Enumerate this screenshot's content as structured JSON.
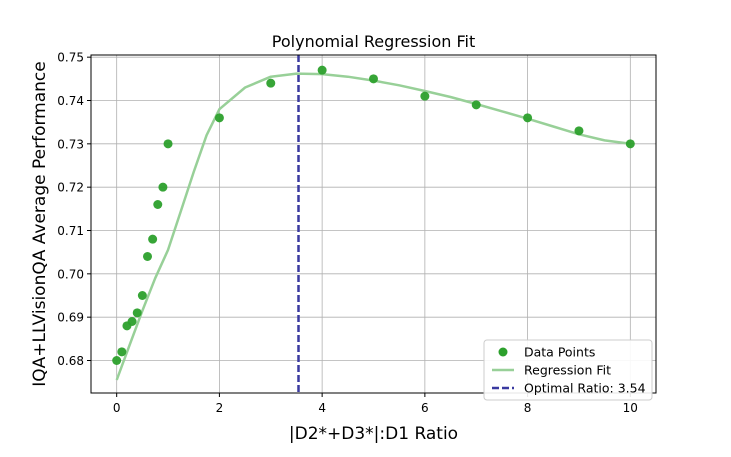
{
  "chart_data": {
    "type": "scatter",
    "title": "Polynomial Regression Fit",
    "xlabel": "|D2*+D3*|:D1 Ratio",
    "ylabel": "IQA+LLVisionQA Average Performance",
    "xlim": [
      -0.5,
      10.5
    ],
    "ylim": [
      0.6725,
      0.7505
    ],
    "xticks": [
      0,
      2,
      4,
      6,
      8,
      10
    ],
    "xtick_labels": [
      "0",
      "2",
      "4",
      "6",
      "8",
      "10"
    ],
    "yticks": [
      0.68,
      0.69,
      0.7,
      0.71,
      0.72,
      0.73,
      0.74,
      0.75
    ],
    "ytick_labels": [
      "0.68",
      "0.69",
      "0.70",
      "0.71",
      "0.72",
      "0.73",
      "0.74",
      "0.75"
    ],
    "grid": true,
    "legend_position": "lower-right",
    "series": [
      {
        "name": "Data Points",
        "kind": "scatter",
        "color": "#2ca02c",
        "x": [
          0,
          0.1,
          0.2,
          0.3,
          0.4,
          0.5,
          0.6,
          0.7,
          0.8,
          0.9,
          1,
          2,
          3,
          4,
          5,
          6,
          7,
          8,
          9,
          10
        ],
        "y": [
          0.68,
          0.682,
          0.688,
          0.689,
          0.691,
          0.695,
          0.704,
          0.708,
          0.716,
          0.72,
          0.73,
          0.736,
          0.744,
          0.747,
          0.745,
          0.741,
          0.739,
          0.736,
          0.733,
          0.73
        ]
      },
      {
        "name": "Regression Fit",
        "kind": "line",
        "color": "#98d098",
        "x": [
          0,
          0.25,
          0.5,
          0.75,
          1,
          1.25,
          1.5,
          1.75,
          2,
          2.5,
          3,
          3.5,
          4,
          4.5,
          5,
          5.5,
          6,
          6.5,
          7,
          7.5,
          8,
          8.5,
          9,
          9.5,
          10
        ],
        "y": [
          0.6755,
          0.6835,
          0.6915,
          0.699,
          0.7055,
          0.7145,
          0.7235,
          0.732,
          0.738,
          0.743,
          0.7455,
          0.7462,
          0.7461,
          0.7455,
          0.7446,
          0.7435,
          0.7422,
          0.7408,
          0.7392,
          0.7375,
          0.7358,
          0.734,
          0.7322,
          0.7308,
          0.73
        ]
      },
      {
        "name": "Optimal Ratio: 3.54",
        "kind": "vline",
        "color": "#3a3aa0",
        "x": 3.54
      }
    ]
  }
}
